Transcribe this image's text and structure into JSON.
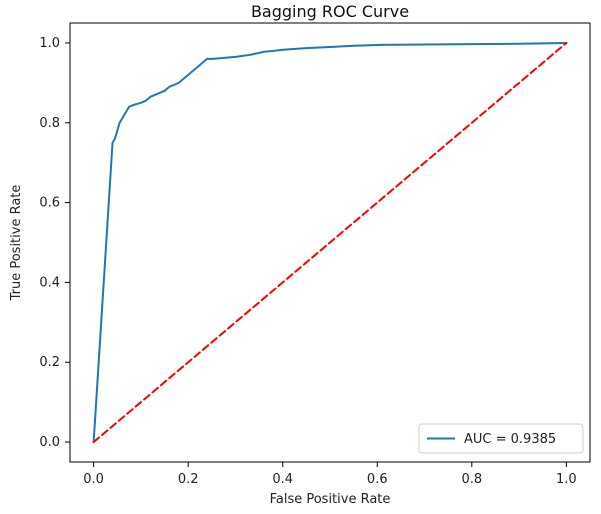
{
  "chart_data": {
    "type": "line",
    "title": "Bagging ROC Curve",
    "xlabel": "False Positive Rate",
    "ylabel": "True Positive Rate",
    "xlim": [
      -0.05,
      1.05
    ],
    "ylim": [
      -0.05,
      1.05
    ],
    "xticks": [
      "0.0",
      "0.2",
      "0.4",
      "0.6",
      "0.8",
      "1.0"
    ],
    "yticks": [
      "0.0",
      "0.2",
      "0.4",
      "0.6",
      "0.8",
      "1.0"
    ],
    "grid": false,
    "legend_position": "lower right",
    "series": [
      {
        "name": "AUC = 0.9385",
        "color": "#1f77b4",
        "style": "solid",
        "x": [
          0.0,
          0.04,
          0.045,
          0.05,
          0.055,
          0.06,
          0.065,
          0.07,
          0.075,
          0.085,
          0.1,
          0.11,
          0.12,
          0.13,
          0.14,
          0.15,
          0.16,
          0.17,
          0.18,
          0.19,
          0.2,
          0.21,
          0.22,
          0.23,
          0.24,
          0.25,
          0.27,
          0.3,
          0.33,
          0.35,
          0.36,
          0.38,
          0.4,
          0.45,
          0.5,
          0.55,
          0.6,
          0.7,
          0.8,
          0.9,
          1.0
        ],
        "y": [
          0.0,
          0.75,
          0.76,
          0.78,
          0.8,
          0.81,
          0.82,
          0.83,
          0.84,
          0.845,
          0.85,
          0.855,
          0.865,
          0.87,
          0.875,
          0.88,
          0.89,
          0.895,
          0.9,
          0.91,
          0.92,
          0.93,
          0.94,
          0.95,
          0.96,
          0.96,
          0.962,
          0.965,
          0.97,
          0.975,
          0.978,
          0.98,
          0.983,
          0.987,
          0.99,
          0.993,
          0.995,
          0.996,
          0.997,
          0.998,
          1.0
        ]
      },
      {
        "name": "",
        "color": "#ff0000",
        "style": "dashed",
        "x": [
          0.0,
          1.0
        ],
        "y": [
          0.0,
          1.0
        ]
      }
    ]
  }
}
